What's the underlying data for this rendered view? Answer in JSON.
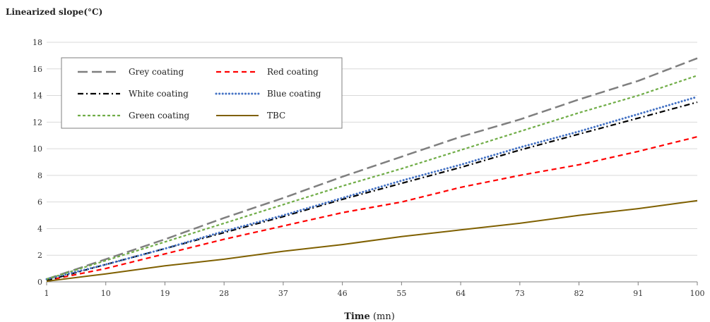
{
  "chart_data": {
    "type": "line",
    "title": "",
    "ylabel": "Linearized slope(°C)",
    "xlabel_bold": "Time",
    "xlabel_rest": " (mn)",
    "xlim": [
      1,
      100
    ],
    "ylim": [
      0,
      18
    ],
    "xticks": [
      1,
      10,
      19,
      28,
      37,
      46,
      55,
      64,
      73,
      82,
      91,
      100
    ],
    "yticks": [
      0,
      2,
      4,
      6,
      8,
      10,
      12,
      14,
      16,
      18
    ],
    "grid": "horizontal",
    "legend_position": "top-left",
    "x": [
      1,
      10,
      19,
      28,
      37,
      46,
      55,
      64,
      73,
      82,
      91,
      100
    ],
    "series": [
      {
        "name": "Grey coating",
        "color": "#7f7f7f",
        "dash": "long-dash",
        "values": [
          0.2,
          1.7,
          3.2,
          4.8,
          6.3,
          7.9,
          9.4,
          10.9,
          12.2,
          13.7,
          15.1,
          16.8
        ]
      },
      {
        "name": "Red coating",
        "color": "#ff0000",
        "dash": "dash",
        "values": [
          0.1,
          1.0,
          2.1,
          3.2,
          4.2,
          5.2,
          6.0,
          7.1,
          8.0,
          8.8,
          9.8,
          10.9
        ]
      },
      {
        "name": "White coating",
        "color": "#000000",
        "dash": "dash-dot",
        "values": [
          0.1,
          1.3,
          2.5,
          3.7,
          4.9,
          6.2,
          7.4,
          8.6,
          9.9,
          11.1,
          12.3,
          13.5
        ]
      },
      {
        "name": "Blue coating",
        "color": "#4472c4",
        "dash": "dot",
        "values": [
          0.2,
          1.3,
          2.5,
          3.8,
          5.0,
          6.3,
          7.6,
          8.8,
          10.1,
          11.3,
          12.6,
          13.9
        ]
      },
      {
        "name": "Green coating",
        "color": "#70ad47",
        "dash": "short-dash",
        "values": [
          0.2,
          1.6,
          3.0,
          4.4,
          5.8,
          7.2,
          8.5,
          9.9,
          11.3,
          12.7,
          14.0,
          15.5
        ]
      },
      {
        "name": "TBC",
        "color": "#7f6000",
        "dash": "solid",
        "values": [
          0.05,
          0.6,
          1.2,
          1.7,
          2.3,
          2.8,
          3.4,
          3.9,
          4.4,
          5.0,
          5.5,
          6.1
        ]
      }
    ]
  }
}
